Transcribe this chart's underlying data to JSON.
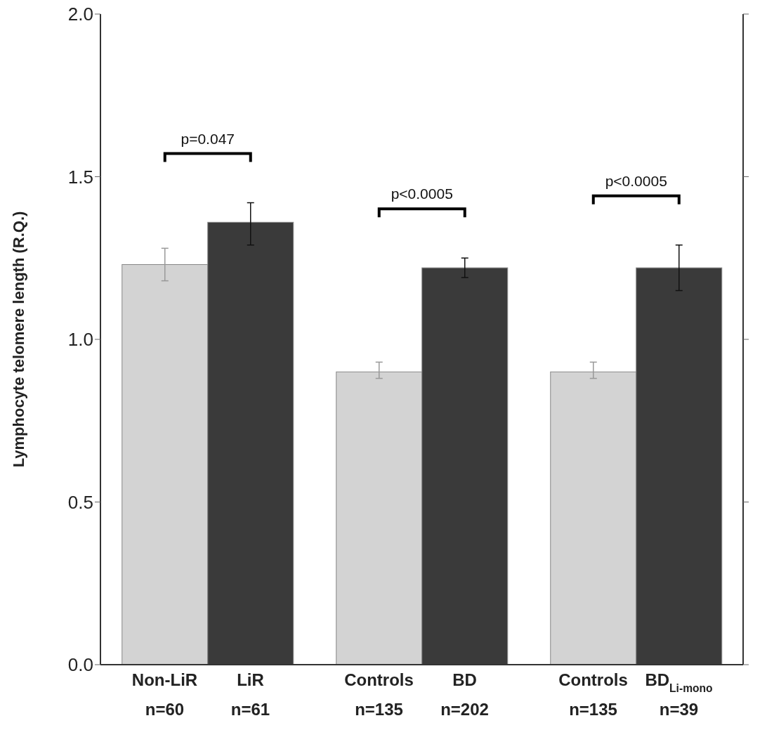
{
  "chart_data": {
    "type": "bar",
    "ylabel": "Lymphocyte telomere length (R.Q.)",
    "categories": [
      "Non-LiR\nn=60",
      "LiR\nn=61",
      "Controls\nn=135",
      "BD\nn=202",
      "Controls\nn=135",
      "BD$_{Li-mono}$\nn=39"
    ],
    "values": [
      1.23,
      1.36,
      0.9,
      1.22,
      0.9,
      1.22
    ],
    "colors": [
      "#d3d3d3",
      "#3a3a3a",
      "#d3d3d3",
      "#3a3a3a",
      "#d3d3d3",
      "#3a3a3a"
    ],
    "errors": [
      [
        1.18,
        1.28
      ],
      [
        1.29,
        1.42
      ],
      [
        0.88,
        0.93
      ],
      [
        1.19,
        1.25
      ],
      [
        0.88,
        0.93
      ],
      [
        1.15,
        1.29
      ]
    ],
    "ylim": [
      0,
      2
    ],
    "yticks": [
      {
        "value": 0,
        "label": "0.0"
      },
      {
        "value": 0.5,
        "label": "0.5"
      },
      {
        "value": 1,
        "label": "1.0"
      },
      {
        "value": 1.5,
        "label": "1.5"
      },
      {
        "value": 2,
        "label": "2.0"
      }
    ],
    "annotations": [
      "p=0.047",
      "p<0.0005",
      "p<0.0005"
    ]
  }
}
